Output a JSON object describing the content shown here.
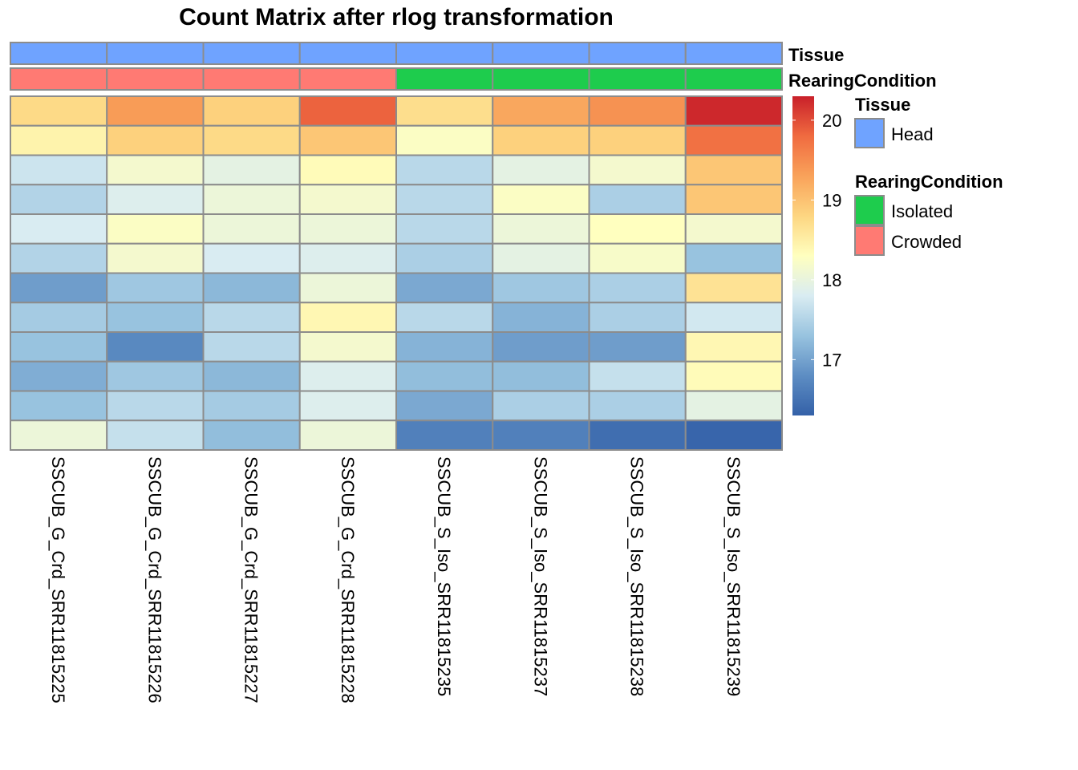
{
  "chart_data": {
    "type": "heatmap",
    "title": "Count Matrix after rlog transformation",
    "columns": [
      "SSCUB_G_Crd_SRR11815225",
      "SSCUB_G_Crd_SRR11815226",
      "SSCUB_G_Crd_SRR11815227",
      "SSCUB_G_Crd_SRR11815228",
      "SSCUB_S_Iso_SRR11815235",
      "SSCUB_S_Iso_SRR11815237",
      "SSCUB_S_Iso_SRR11815238",
      "SSCUB_S_Iso_SRR11815239"
    ],
    "annotations": [
      {
        "name": "Tissue",
        "values": [
          "Head",
          "Head",
          "Head",
          "Head",
          "Head",
          "Head",
          "Head",
          "Head"
        ]
      },
      {
        "name": "RearingCondition",
        "values": [
          "Crowded",
          "Crowded",
          "Crowded",
          "Crowded",
          "Isolated",
          "Isolated",
          "Isolated",
          "Isolated"
        ]
      }
    ],
    "values": [
      [
        18.75,
        19.35,
        18.85,
        19.85,
        18.7,
        19.25,
        19.45,
        20.25
      ],
      [
        18.45,
        18.85,
        18.75,
        18.95,
        18.25,
        18.85,
        18.85,
        19.75
      ],
      [
        17.7,
        18.15,
        17.95,
        18.35,
        17.55,
        17.95,
        18.15,
        18.95
      ],
      [
        17.5,
        17.85,
        18.05,
        18.15,
        17.55,
        18.25,
        17.45,
        18.95
      ],
      [
        17.8,
        18.25,
        18.05,
        18.05,
        17.55,
        18.05,
        18.3,
        18.15
      ],
      [
        17.5,
        18.15,
        17.8,
        17.85,
        17.45,
        17.95,
        18.2,
        17.3
      ],
      [
        16.95,
        17.35,
        17.2,
        18.05,
        17.05,
        17.35,
        17.45,
        18.65
      ],
      [
        17.4,
        17.3,
        17.55,
        18.4,
        17.55,
        17.15,
        17.45,
        17.75
      ],
      [
        17.3,
        16.75,
        17.55,
        18.15,
        17.15,
        16.95,
        16.95,
        18.4
      ],
      [
        17.1,
        17.35,
        17.2,
        17.85,
        17.25,
        17.25,
        17.65,
        18.35
      ],
      [
        17.3,
        17.55,
        17.4,
        17.85,
        17.05,
        17.45,
        17.45,
        17.95
      ],
      [
        18.05,
        17.65,
        17.25,
        18.05,
        16.65,
        16.65,
        16.45,
        16.35
      ]
    ],
    "color_scale": {
      "min": 16.3,
      "max": 20.3,
      "ticks": [
        "17",
        "18",
        "19",
        "20"
      ],
      "colors": [
        "#3461A8",
        "#5D8DC3",
        "#98C3DF",
        "#D9ECF2",
        "#FFFFBF",
        "#FDD681",
        "#F9A25A",
        "#F06B40",
        "#C9202A"
      ]
    },
    "legend": {
      "position": "right",
      "groups": [
        {
          "title": "Tissue",
          "items": [
            {
              "label": "Head",
              "color": "#6FA3FF"
            }
          ]
        },
        {
          "title": "RearingCondition",
          "items": [
            {
              "label": "Isolated",
              "color": "#1ECC4D"
            },
            {
              "label": "Crowded",
              "color": "#FF7A73"
            }
          ]
        }
      ]
    }
  }
}
